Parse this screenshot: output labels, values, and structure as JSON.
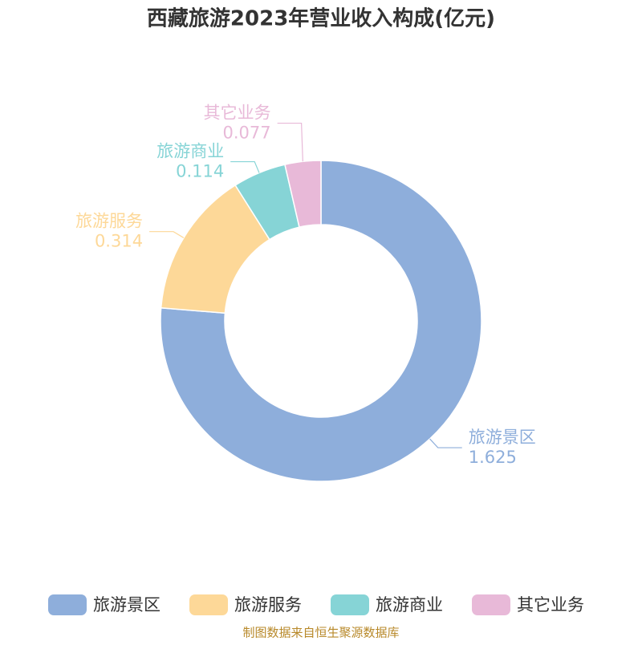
{
  "chart_data": {
    "type": "donut",
    "title": "西藏旅游2023年营业收入构成(亿元)",
    "categories": [
      "旅游景区",
      "旅游服务",
      "旅游商业",
      "其它业务"
    ],
    "values": [
      1.625,
      0.314,
      0.114,
      0.077
    ],
    "colors": [
      "#8eaedb",
      "#fdd898",
      "#86d4d6",
      "#e8b9d8"
    ],
    "legend": "bottom",
    "source": "制图数据来自恒生聚源数据库"
  }
}
